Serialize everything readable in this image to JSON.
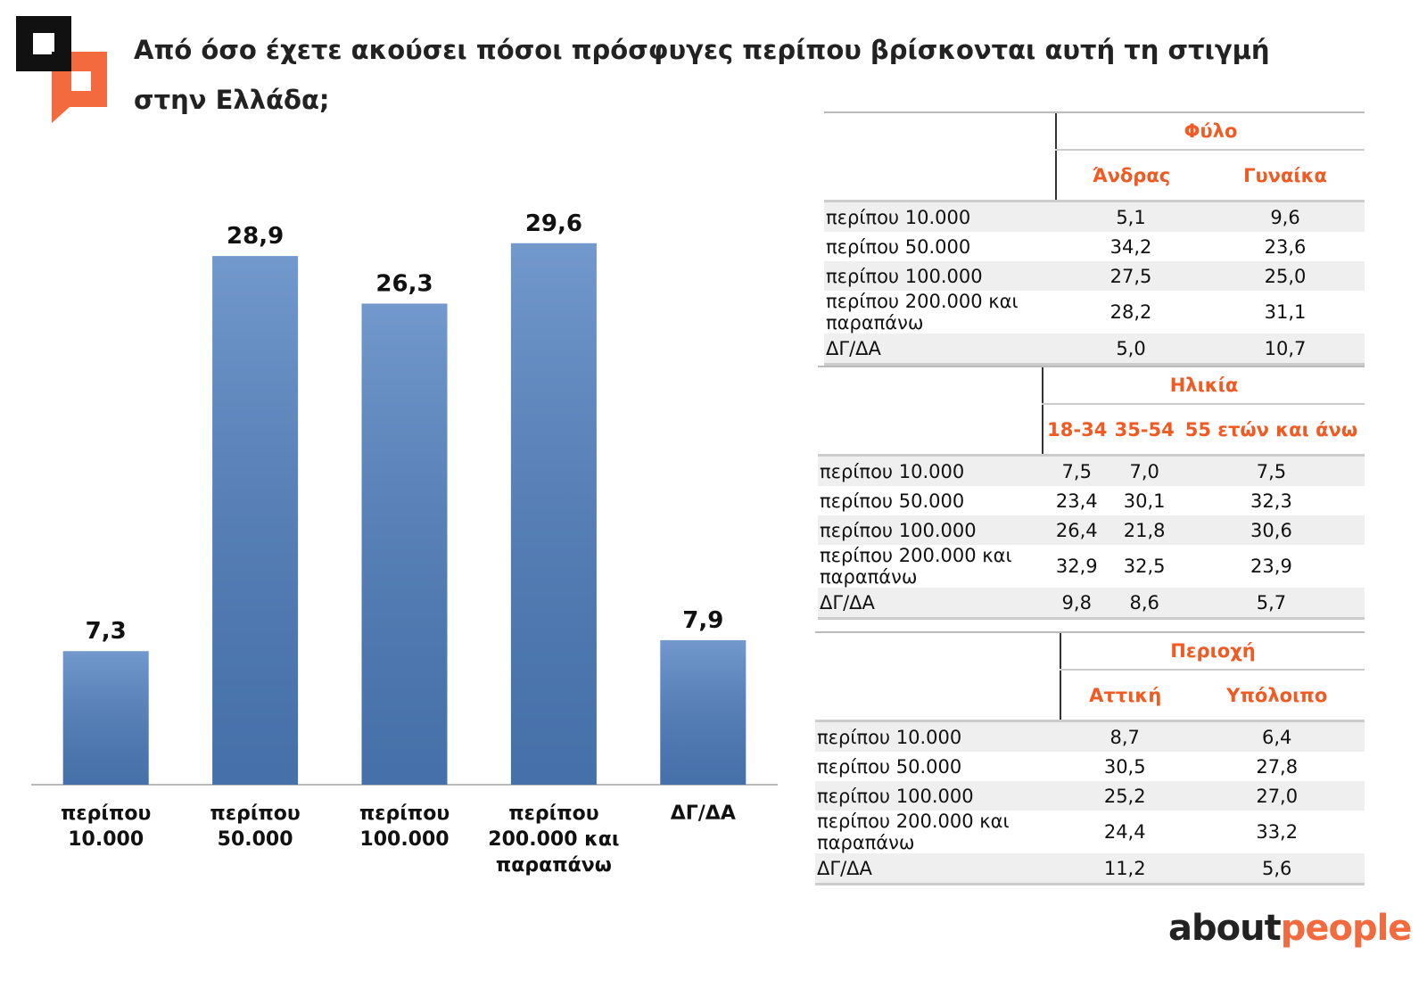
{
  "chart_data": {
    "type": "bar",
    "title": "Από όσο έχετε ακούσει πόσοι πρόσφυγες περίπου βρίσκονται αυτή τη στιγμή στην Ελλάδα;",
    "categories": [
      "περίπου 10.000",
      "περίπου 50.000",
      "περίπου 100.000",
      "περίπου 200.000 και παραπάνω",
      "ΔΓ/ΔΑ"
    ],
    "values": [
      7.3,
      28.9,
      26.3,
      29.6,
      7.9
    ],
    "value_labels": [
      "7,3",
      "28,9",
      "26,3",
      "29,6",
      "7,9"
    ],
    "color": "#4f7fc0",
    "ylim": [
      0,
      35
    ]
  },
  "tables": [
    {
      "group": "Φύλο",
      "columns": [
        "Άνδρας",
        "Γυναίκα"
      ],
      "rows": [
        {
          "label": "περίπου 10.000",
          "values": [
            "5,1",
            "9,6"
          ]
        },
        {
          "label": "περίπου 50.000",
          "values": [
            "34,2",
            "23,6"
          ]
        },
        {
          "label": "περίπου 100.000",
          "values": [
            "27,5",
            "25,0"
          ]
        },
        {
          "label": "περίπου 200.000 και παραπάνω",
          "values": [
            "28,2",
            "31,1"
          ]
        },
        {
          "label": "ΔΓ/ΔΑ",
          "values": [
            "5,0",
            "10,7"
          ]
        }
      ]
    },
    {
      "group": "Ηλικία",
      "columns": [
        "18-34",
        "35-54",
        "55 ετών και άνω"
      ],
      "rows": [
        {
          "label": "περίπου 10.000",
          "values": [
            "7,5",
            "7,0",
            "7,5"
          ]
        },
        {
          "label": "περίπου 50.000",
          "values": [
            "23,4",
            "30,1",
            "32,3"
          ]
        },
        {
          "label": "περίπου 100.000",
          "values": [
            "26,4",
            "21,8",
            "30,6"
          ]
        },
        {
          "label": "περίπου 200.000 και παραπάνω",
          "values": [
            "32,9",
            "32,5",
            "23,9"
          ]
        },
        {
          "label": "ΔΓ/ΔΑ",
          "values": [
            "9,8",
            "8,6",
            "5,7"
          ]
        }
      ]
    },
    {
      "group": "Περιοχή",
      "columns": [
        "Αττική",
        "Υπόλοιπο"
      ],
      "rows": [
        {
          "label": "περίπου 10.000",
          "values": [
            "8,7",
            "6,4"
          ]
        },
        {
          "label": "περίπου 50.000",
          "values": [
            "30,5",
            "27,8"
          ]
        },
        {
          "label": "περίπου 100.000",
          "values": [
            "25,2",
            "27,0"
          ]
        },
        {
          "label": "περίπου 200.000 και παραπάνω",
          "values": [
            "24,4",
            "33,2"
          ]
        },
        {
          "label": "ΔΓ/ΔΑ",
          "values": [
            "11,2",
            "5,6"
          ]
        }
      ]
    }
  ],
  "brand": [
    "about",
    "people"
  ]
}
